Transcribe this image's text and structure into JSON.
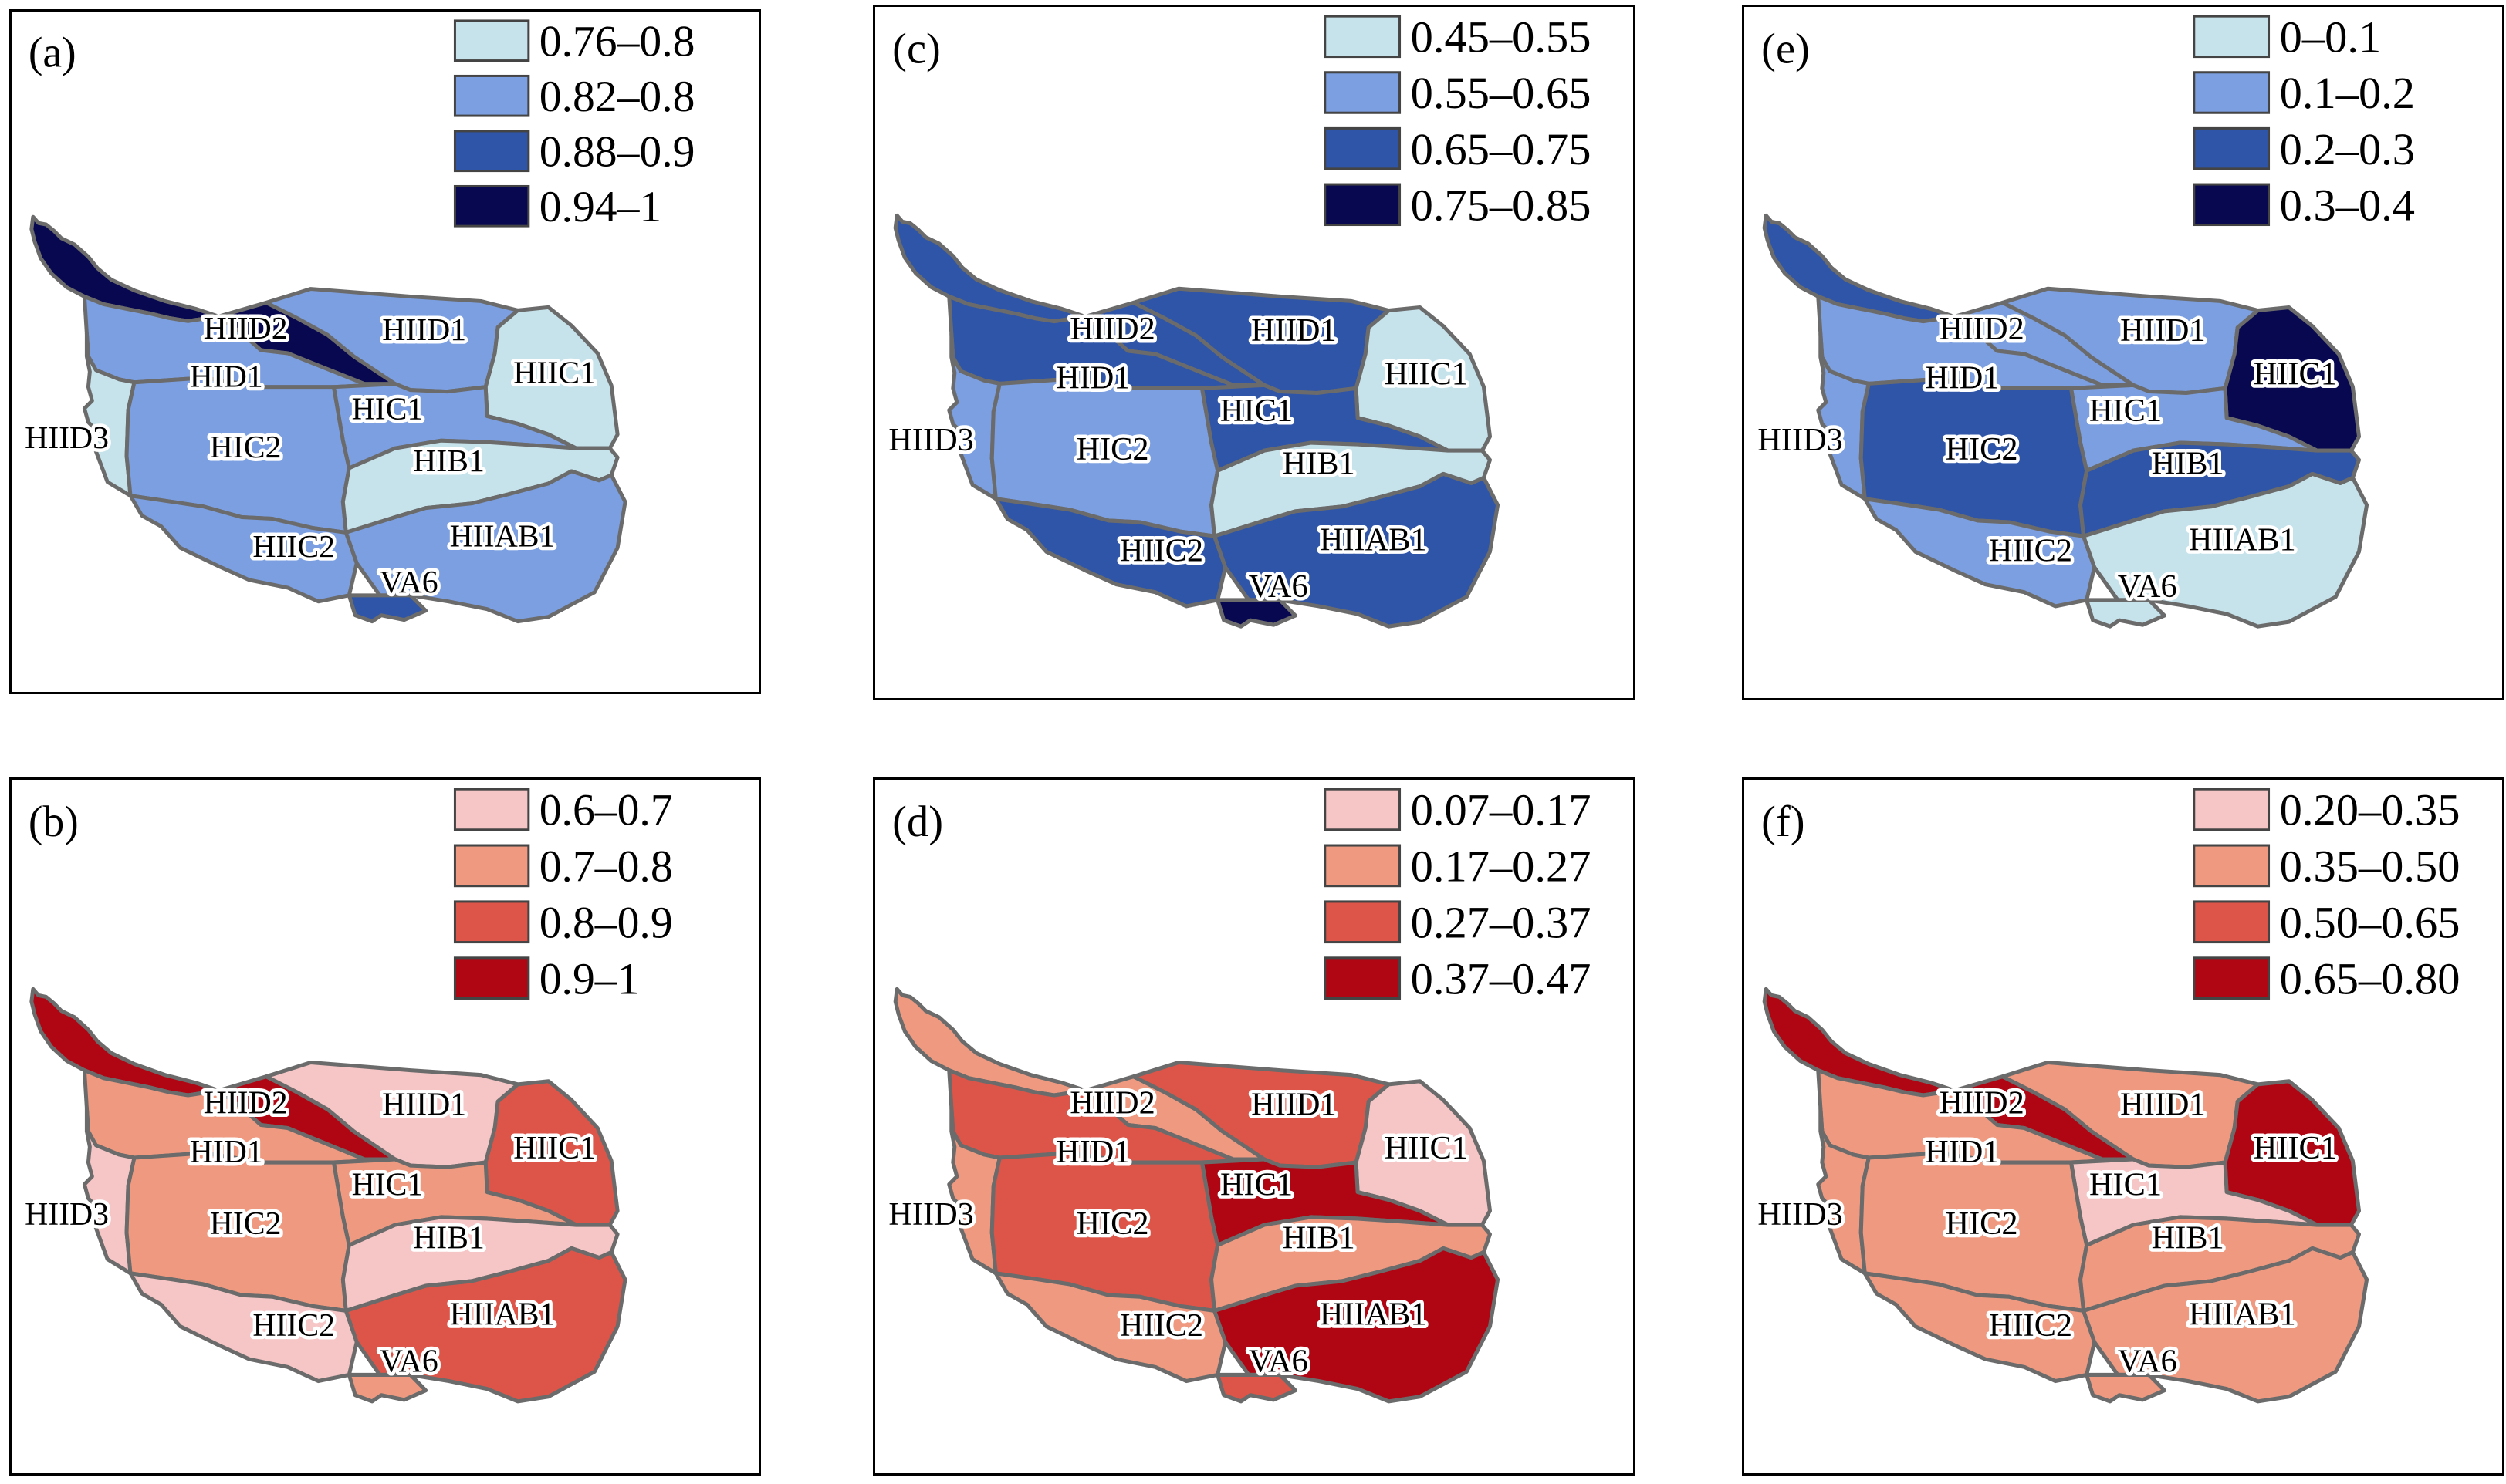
{
  "panels": [
    {
      "id": "a",
      "letter": "(a)",
      "legend": [
        {
          "label": "0.76–0.8",
          "color": "#c6e3ec"
        },
        {
          "label": "0.82–0.8",
          "color": "#7b9fe0"
        },
        {
          "label": "0.88–0.9",
          "color": "#2e55a8"
        },
        {
          "label": "0.94–1",
          "color": "#080850"
        }
      ],
      "classes": {
        "HIID2": 3,
        "HIID1": 1,
        "HIIC1": 0,
        "HID1": 1,
        "HIC1": 1,
        "HIID3": 0,
        "HIC2": 1,
        "HIB1": 0,
        "HIIC2": 1,
        "HIIAB1": 1,
        "VA6": 2,
        "NW": 3
      }
    },
    {
      "id": "b",
      "letter": "(b)",
      "legend": [
        {
          "label": "0.6–0.7",
          "color": "#f6c5c5"
        },
        {
          "label": "0.7–0.8",
          "color": "#ef9a80"
        },
        {
          "label": "0.8–0.9",
          "color": "#dd5548"
        },
        {
          "label": "0.9–1",
          "color": "#b00613"
        }
      ],
      "classes": {
        "HIID2": 3,
        "HIID1": 0,
        "HIIC1": 2,
        "HID1": 1,
        "HIC1": 1,
        "HIID3": 0,
        "HIC2": 1,
        "HIB1": 0,
        "HIIC2": 0,
        "HIIAB1": 2,
        "VA6": 1,
        "NW": 3
      }
    },
    {
      "id": "c",
      "letter": "(c)",
      "legend": [
        {
          "label": "0.45–0.55",
          "color": "#c6e3ec"
        },
        {
          "label": "0.55–0.65",
          "color": "#7b9fe0"
        },
        {
          "label": "0.65–0.75",
          "color": "#2e55a8"
        },
        {
          "label": "0.75–0.85",
          "color": "#080850"
        }
      ],
      "classes": {
        "HIID2": 2,
        "HIID1": 2,
        "HIIC1": 0,
        "HID1": 2,
        "HIC1": 2,
        "HIID3": 1,
        "HIC2": 1,
        "HIB1": 0,
        "HIIC2": 2,
        "HIIAB1": 2,
        "VA6": 3,
        "NW": 2
      }
    },
    {
      "id": "d",
      "letter": "(d)",
      "legend": [
        {
          "label": "0.07–0.17",
          "color": "#f6c5c5"
        },
        {
          "label": "0.17–0.27",
          "color": "#ef9a80"
        },
        {
          "label": "0.27–0.37",
          "color": "#dd5548"
        },
        {
          "label": "0.37–0.47",
          "color": "#b00613"
        }
      ],
      "classes": {
        "HIID2": 1,
        "HIID1": 2,
        "HIIC1": 0,
        "HID1": 2,
        "HIC1": 3,
        "HIID3": 1,
        "HIC2": 2,
        "HIB1": 1,
        "HIIC2": 1,
        "HIIAB1": 3,
        "VA6": 2,
        "NW": 1
      }
    },
    {
      "id": "e",
      "letter": "(e)",
      "legend": [
        {
          "label": "0–0.1",
          "color": "#c6e3ec"
        },
        {
          "label": "0.1–0.2",
          "color": "#7b9fe0"
        },
        {
          "label": "0.2–0.3",
          "color": "#2e55a8"
        },
        {
          "label": "0.3–0.4",
          "color": "#080850"
        }
      ],
      "classes": {
        "HIID2": 1,
        "HIID1": 1,
        "HIIC1": 3,
        "HID1": 1,
        "HIC1": 1,
        "HIID3": 1,
        "HIC2": 2,
        "HIB1": 2,
        "HIIC2": 1,
        "HIIAB1": 0,
        "VA6": 0,
        "NW": 2
      }
    },
    {
      "id": "f",
      "letter": "(f)",
      "legend": [
        {
          "label": "0.20–0.35",
          "color": "#f6c5c5"
        },
        {
          "label": "0.35–0.50",
          "color": "#ef9a80"
        },
        {
          "label": "0.50–0.65",
          "color": "#dd5548"
        },
        {
          "label": "0.65–0.80",
          "color": "#b00613"
        }
      ],
      "classes": {
        "HIID2": 3,
        "HIID1": 1,
        "HIIC1": 3,
        "HID1": 1,
        "HIC1": 0,
        "HIID3": 1,
        "HIC2": 1,
        "HIB1": 1,
        "HIIC2": 1,
        "HIIAB1": 1,
        "VA6": 1,
        "NW": 3
      }
    }
  ],
  "region_labels": [
    "HIID2",
    "HIID1",
    "HIIC1",
    "HID1",
    "HIC1",
    "HIID3",
    "HIC2",
    "HIB1",
    "HIIC2",
    "HIIAB1",
    "VA6"
  ]
}
